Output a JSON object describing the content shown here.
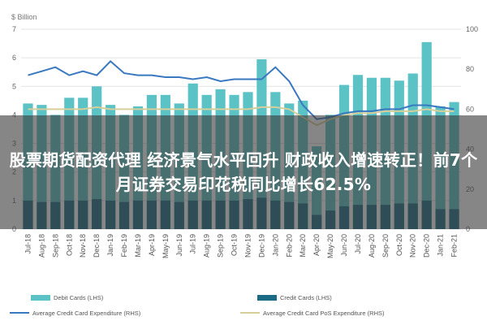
{
  "chart_data": {
    "type": "bar",
    "units_label": "$ Billion",
    "categories": [
      "Jul-18",
      "Aug-18",
      "Sep-18",
      "Oct-18",
      "Nov-18",
      "Dec-18",
      "Jan-19",
      "Feb-19",
      "Mar-19",
      "Apr-19",
      "May-19",
      "Jun-19",
      "Jul-19",
      "Aug-19",
      "Sep-19",
      "Oct-19",
      "Nov-19",
      "Dec-19",
      "Jan-20",
      "Feb-20",
      "Mar-20",
      "Apr-20",
      "May-20",
      "Jun-20",
      "Jul-20",
      "Aug-20",
      "Sep-20",
      "Oct-20",
      "Nov-20",
      "Dec-20",
      "Jan-21",
      "Feb-21"
    ],
    "visible_tick_labels": [
      "Jul-18",
      "Aug-18",
      "Sep-18",
      "Oct-18",
      "Nov-18",
      "Dec-18",
      "Jan-19",
      "Feb-19",
      "Mar-19",
      "Apr-19",
      "May-19",
      "Jun-19",
      "Jul-19",
      "Aug-19",
      "Sep-19",
      "Oct-19",
      "Nov-19",
      "Dec-19",
      "Jan-20",
      "Feb-20",
      "Mar-20",
      "Apr-20",
      "May-20",
      "Jun-20",
      "Jul-20",
      "Aug-20",
      "Sep-20",
      "Oct-20",
      "Nov-20",
      "Dec-20",
      "Jan-21",
      "Feb-21"
    ],
    "y_left": {
      "min": 0,
      "max": 7,
      "ticks": [
        0,
        1,
        2,
        3,
        4,
        5,
        6,
        7
      ]
    },
    "y_right": {
      "min": 0,
      "max": 100,
      "ticks": [
        0,
        20,
        40,
        60,
        80,
        100
      ]
    },
    "grid": true,
    "legend_placement": "bottom",
    "series": [
      {
        "name": "Debit Cards (LHS)",
        "kind": "bar",
        "axis": "left",
        "color": "#5bc2c6",
        "values": [
          4.4,
          4.35,
          4.0,
          4.6,
          4.6,
          5.0,
          4.35,
          4.0,
          4.3,
          4.7,
          4.7,
          4.4,
          5.1,
          4.7,
          4.9,
          4.7,
          4.8,
          5.95,
          4.8,
          4.4,
          4.5,
          2.9,
          4.0,
          5.05,
          5.4,
          5.3,
          5.3,
          5.2,
          5.45,
          6.55,
          4.3,
          4.45
        ]
      },
      {
        "name": "Credit Cards (LHS)",
        "kind": "bar",
        "axis": "left",
        "color": "#1b6b84",
        "values": [
          1.0,
          0.95,
          0.95,
          1.0,
          1.0,
          1.05,
          1.0,
          0.95,
          1.0,
          1.0,
          1.0,
          0.95,
          1.0,
          1.0,
          1.0,
          1.0,
          1.05,
          1.1,
          1.0,
          0.95,
          0.9,
          0.5,
          0.65,
          0.8,
          0.85,
          0.85,
          0.85,
          0.9,
          0.9,
          1.0,
          0.7,
          0.7
        ]
      },
      {
        "name": "Average Credit Card Expenditure (RHS)",
        "kind": "line",
        "axis": "right",
        "color": "#3a78c0",
        "values": [
          77,
          79,
          81,
          77,
          79,
          77,
          84,
          78,
          77,
          77,
          76,
          76,
          75,
          76,
          74,
          75,
          75,
          75,
          81,
          74,
          62,
          55,
          56,
          58,
          59,
          59,
          60,
          60,
          62,
          62,
          61,
          60
        ]
      },
      {
        "name": "Average Credit Card PoS Expenditure (RHS)",
        "kind": "line",
        "axis": "right",
        "color": "#d7cf9a",
        "values": [
          60,
          60,
          60,
          60,
          60,
          61,
          60,
          60,
          60,
          60,
          60,
          60,
          60,
          60,
          60,
          60,
          60,
          61,
          61,
          60,
          56,
          52,
          55,
          57,
          58,
          58,
          59,
          59,
          59,
          60,
          59,
          59
        ]
      }
    ]
  },
  "banner": {
    "text": "股票期货配资代理 经济景气水平回升 财政收入增速转正！前7个月证券交易印花税同比增长62.5%"
  },
  "colors": {
    "debit": "#5bc2c6",
    "credit": "#1b6b84",
    "avg_credit_line": "#3a78c0",
    "avg_pos_line": "#d7cf9a"
  }
}
